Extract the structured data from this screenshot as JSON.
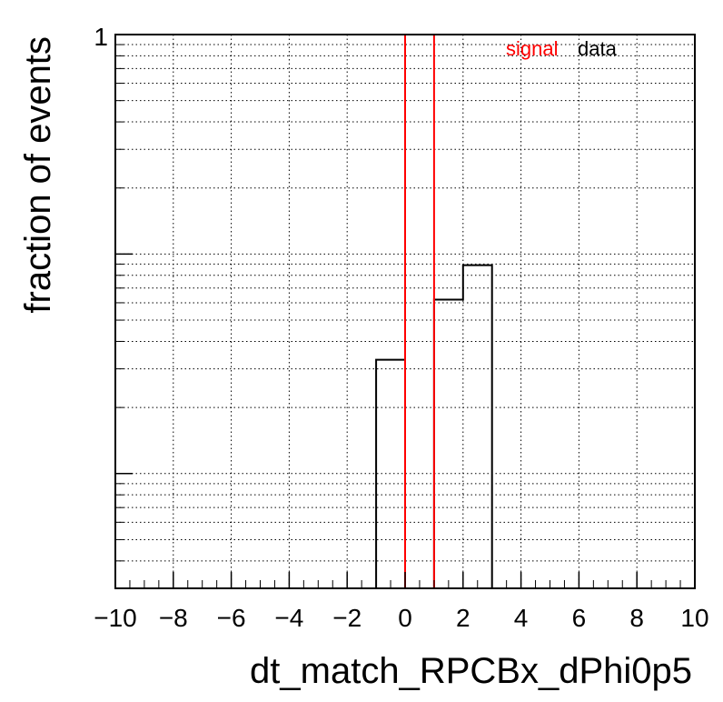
{
  "chart_data": {
    "type": "histogram",
    "xlabel": "dt_match_RPCBx_dPhi0p5",
    "ylabel": "fraction of events",
    "xlim": [
      -10,
      10
    ],
    "ylim": [
      0.003,
      1
    ],
    "log_y": true,
    "grid": true,
    "x_ticks": [
      -10,
      -8,
      -6,
      -4,
      -2,
      0,
      2,
      4,
      6,
      8,
      10
    ],
    "x_tick_labels": [
      "−10",
      "−8",
      "−6",
      "−4",
      "−2",
      "0",
      "2",
      "4",
      "6",
      "8",
      "10"
    ],
    "y_tick_labels": [
      {
        "value": 1,
        "label": "1"
      }
    ],
    "legend": {
      "placement": "top-right",
      "entries": [
        "signal",
        "data"
      ]
    },
    "series": [
      {
        "name": "signal",
        "color": "#ff0000",
        "bin_edges": [
          -10,
          -9,
          -8,
          -7,
          -6,
          -5,
          -4,
          -3,
          -2,
          -1,
          0,
          1,
          2,
          3,
          4,
          5,
          6,
          7,
          8,
          9,
          10
        ],
        "values": [
          0,
          0,
          0,
          0,
          0,
          0,
          0,
          0,
          0,
          0,
          1,
          0,
          0,
          0,
          0,
          0,
          0,
          0,
          0,
          0
        ]
      },
      {
        "name": "data",
        "color": "#000000",
        "bin_edges": [
          -10,
          -9,
          -8,
          -7,
          -6,
          -5,
          -4,
          -3,
          -2,
          -1,
          0,
          1,
          2,
          3,
          4,
          5,
          6,
          7,
          8,
          9,
          10
        ],
        "values": [
          0,
          0,
          0,
          0,
          0,
          0,
          0,
          0,
          0,
          0.033,
          0,
          0.062,
          0.089,
          0,
          0,
          0,
          0,
          0,
          0,
          0
        ]
      }
    ]
  }
}
